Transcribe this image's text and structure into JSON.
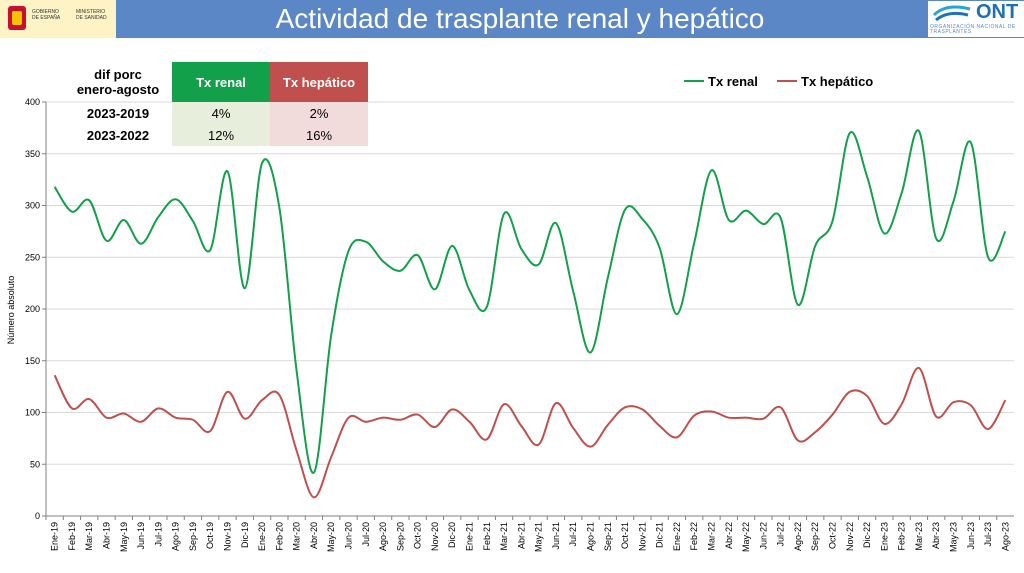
{
  "title": "Actividad de trasplante renal y hepático",
  "logos": {
    "gov_line1": "GOBIERNO DE ESPAÑA",
    "gov_line2": "MINISTERIO DE SANIDAD",
    "ont_name": "ONT",
    "ont_sub": "ORGANIZACIÓN NACIONAL DE TRASPLANTES"
  },
  "table": {
    "corner_line1": "dif porc",
    "corner_line2": "enero-agosto",
    "col_renal": "Tx renal",
    "col_hepatico": "Tx hepático",
    "rows": [
      {
        "label": "2023-2019",
        "renal": "4%",
        "hepatico": "2%"
      },
      {
        "label": "2023-2022",
        "renal": "12%",
        "hepatico": "16%"
      }
    ]
  },
  "chart_data": {
    "type": "line",
    "title": "",
    "xlabel": "",
    "ylabel": "Número absoluto",
    "ylim": [
      0,
      400
    ],
    "yticks": [
      0,
      50,
      100,
      150,
      200,
      250,
      300,
      350,
      400
    ],
    "grid": true,
    "legend_position": "top-right",
    "categories": [
      "Ene-19",
      "Feb-19",
      "Mar-19",
      "Abr-19",
      "May-19",
      "Jun-19",
      "Jul-19",
      "Ago-19",
      "Sep-19",
      "Oct-19",
      "Nov-19",
      "Dic-19",
      "Ene-20",
      "Feb-20",
      "Mar-20",
      "Abr-20",
      "May-20",
      "Jun-20",
      "Jul-20",
      "Ago-20",
      "Sep-20",
      "Oct-20",
      "Nov-20",
      "Dic-20",
      "Ene-21",
      "Feb-21",
      "Mar-21",
      "Abr-21",
      "May-21",
      "Jun-21",
      "Jul-21",
      "Ago-21",
      "Sep-21",
      "Oct-21",
      "Nov-21",
      "Dic-21",
      "Ene-22",
      "Feb-22",
      "Mar-22",
      "Abr-22",
      "May-22",
      "Jun-22",
      "Jul-22",
      "Ago-22",
      "Sep-22",
      "Oct-22",
      "Nov-22",
      "Dic-22",
      "Ene-23",
      "Feb-23",
      "Mar-23",
      "Abr-23",
      "May-23",
      "Jun-23",
      "Jul-23",
      "Ago-23"
    ],
    "series": [
      {
        "name": "Tx renal",
        "color": "#12a04a",
        "values": [
          318,
          294,
          305,
          266,
          286,
          263,
          289,
          306,
          285,
          257,
          333,
          220,
          341,
          298,
          140,
          42,
          175,
          256,
          265,
          246,
          237,
          252,
          219,
          261,
          218,
          202,
          292,
          258,
          243,
          283,
          217,
          158,
          230,
          296,
          287,
          259,
          195,
          264,
          334,
          286,
          295,
          282,
          288,
          204,
          261,
          285,
          370,
          328,
          273,
          312,
          372,
          268,
          304,
          361,
          250,
          275
        ]
      },
      {
        "name": "Tx hepático",
        "color": "#c0504d",
        "values": [
          136,
          104,
          113,
          95,
          99,
          91,
          104,
          95,
          93,
          82,
          120,
          94,
          112,
          117,
          63,
          18,
          57,
          95,
          91,
          95,
          93,
          98,
          86,
          103,
          91,
          74,
          108,
          87,
          69,
          109,
          85,
          67,
          88,
          105,
          103,
          87,
          76,
          97,
          101,
          95,
          95,
          94,
          105,
          73,
          81,
          98,
          120,
          116,
          89,
          108,
          143,
          96,
          110,
          107,
          84,
          112
        ]
      }
    ]
  }
}
